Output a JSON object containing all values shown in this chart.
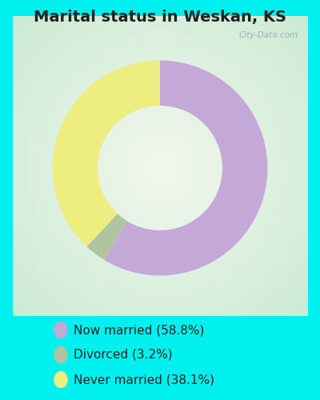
{
  "title": "Marital status in Weskan, KS",
  "outer_bg_color": "#00EFEF",
  "chart_panel_color": "#d4ece3",
  "slices": [
    58.8,
    3.2,
    38.1
  ],
  "labels": [
    "Now married (58.8%)",
    "Divorced (3.2%)",
    "Never married (38.1%)"
  ],
  "colors": [
    "#c4a8d8",
    "#b0c4a0",
    "#eeee80"
  ],
  "donut_width": 0.42,
  "start_angle": 90,
  "title_fontsize": 14,
  "legend_fontsize": 11,
  "title_color": "#222222",
  "legend_text_color": "#222222",
  "watermark": "City-Data.com",
  "watermark_color": "#99aabb"
}
